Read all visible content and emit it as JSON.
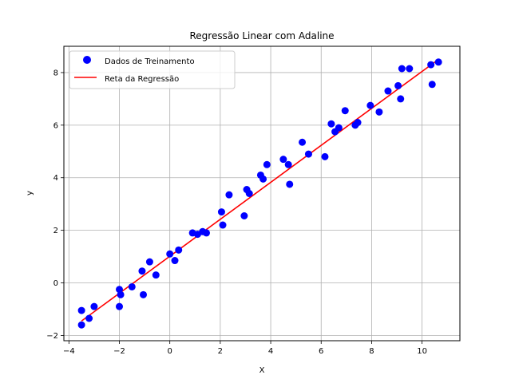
{
  "chart_data": {
    "type": "scatter",
    "title": "Regressão Linear com Adaline",
    "xlabel": "X",
    "ylabel": "y",
    "xlim": [
      -4.2,
      11.5
    ],
    "ylim": [
      -2.2,
      9.0
    ],
    "xticks": [
      -4,
      -2,
      0,
      2,
      4,
      6,
      8,
      10
    ],
    "yticks": [
      -2,
      0,
      2,
      4,
      6,
      8
    ],
    "grid": true,
    "legend_position": "top-left",
    "colors": {
      "scatter": "#0000ff",
      "line": "#ff0000"
    },
    "series": [
      {
        "name": "Dados de Treinamento",
        "kind": "scatter",
        "points": [
          [
            -3.5,
            -1.05
          ],
          [
            -3.5,
            -1.6
          ],
          [
            -3.2,
            -1.35
          ],
          [
            -3.0,
            -0.9
          ],
          [
            -2.0,
            -0.25
          ],
          [
            -1.95,
            -0.45
          ],
          [
            -2.0,
            -0.9
          ],
          [
            -1.5,
            -0.15
          ],
          [
            -1.1,
            0.45
          ],
          [
            -1.05,
            -0.45
          ],
          [
            -0.8,
            0.8
          ],
          [
            -0.55,
            0.3
          ],
          [
            0.0,
            1.1
          ],
          [
            0.2,
            0.85
          ],
          [
            0.35,
            1.25
          ],
          [
            0.9,
            1.9
          ],
          [
            1.1,
            1.85
          ],
          [
            1.3,
            1.95
          ],
          [
            1.45,
            1.9
          ],
          [
            2.05,
            2.7
          ],
          [
            2.1,
            2.2
          ],
          [
            2.35,
            3.35
          ],
          [
            2.95,
            2.55
          ],
          [
            3.05,
            3.55
          ],
          [
            3.15,
            3.4
          ],
          [
            3.6,
            4.1
          ],
          [
            3.7,
            3.95
          ],
          [
            3.85,
            4.5
          ],
          [
            4.5,
            4.7
          ],
          [
            4.7,
            4.5
          ],
          [
            4.75,
            3.75
          ],
          [
            5.25,
            5.35
          ],
          [
            5.5,
            4.9
          ],
          [
            6.15,
            4.8
          ],
          [
            6.4,
            6.05
          ],
          [
            6.55,
            5.75
          ],
          [
            6.7,
            5.9
          ],
          [
            6.95,
            6.55
          ],
          [
            7.35,
            6.0
          ],
          [
            7.45,
            6.1
          ],
          [
            7.95,
            6.75
          ],
          [
            8.3,
            6.5
          ],
          [
            8.65,
            7.3
          ],
          [
            9.05,
            7.5
          ],
          [
            9.15,
            7.0
          ],
          [
            9.2,
            8.15
          ],
          [
            9.5,
            8.15
          ],
          [
            10.35,
            8.3
          ],
          [
            10.4,
            7.55
          ],
          [
            10.65,
            8.4
          ]
        ]
      },
      {
        "name": "Reta da Regressão",
        "kind": "line",
        "points": [
          [
            -3.5,
            -1.45
          ],
          [
            10.65,
            8.5
          ]
        ]
      }
    ]
  }
}
